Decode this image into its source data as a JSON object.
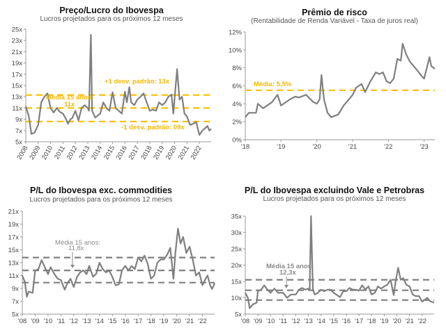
{
  "chart_data": [
    {
      "type": "line",
      "title": "Preço/Lucro do Ibovespa",
      "subtitle": "Lucros projetados para os próximos 12 meses",
      "ylim": [
        5,
        25
      ],
      "yticks": [
        5,
        7,
        9,
        11,
        13,
        15,
        17,
        19,
        21,
        23,
        25
      ],
      "ytick_suffix": "x",
      "xlim": [
        2008,
        2022.95
      ],
      "xticks": [
        2008,
        2009,
        2010,
        2011,
        2012,
        2013,
        2014,
        2015,
        2016,
        2017,
        2018,
        2019,
        2020,
        2021,
        2022
      ],
      "xtick_labels": [
        "2008",
        "2009",
        "2010",
        "2011",
        "2012",
        "2013",
        "2014",
        "2015",
        "2016",
        "2017",
        "2018",
        "2019",
        "2020",
        "2021",
        "2022"
      ],
      "line_color": "#7f7f7f",
      "reference_color": "#ffc000",
      "reference_lines": [
        13.3,
        11.0,
        8.6
      ],
      "annotations": {
        "plus_sd": "+1 desv. padrão: 13x",
        "mean_label": "Média 15 anos:",
        "mean_value": "11x",
        "minus_sd": "-1 desv. padrão: 09x"
      },
      "points": [
        [
          2008,
          11.3
        ],
        [
          2008.25,
          9.5
        ],
        [
          2008.45,
          6.4
        ],
        [
          2008.7,
          6.6
        ],
        [
          2009,
          8
        ],
        [
          2009.25,
          12
        ],
        [
          2009.5,
          13
        ],
        [
          2009.75,
          13.6
        ],
        [
          2010,
          11
        ],
        [
          2010.25,
          10.2
        ],
        [
          2010.5,
          11
        ],
        [
          2010.75,
          10.3
        ],
        [
          2011,
          10
        ],
        [
          2011.25,
          9
        ],
        [
          2011.4,
          8.2
        ],
        [
          2011.6,
          9
        ],
        [
          2011.75,
          9.2
        ],
        [
          2012,
          10.5
        ],
        [
          2012.25,
          8.8
        ],
        [
          2012.5,
          11
        ],
        [
          2012.75,
          11.5
        ],
        [
          2013,
          11
        ],
        [
          2013.1,
          10.5
        ],
        [
          2013.25,
          24
        ],
        [
          2013.35,
          10.5
        ],
        [
          2013.6,
          9.3
        ],
        [
          2014,
          10
        ],
        [
          2014.25,
          12
        ],
        [
          2014.5,
          11
        ],
        [
          2014.75,
          10.5
        ],
        [
          2015,
          13.8
        ],
        [
          2015.25,
          11
        ],
        [
          2015.5,
          10.5
        ],
        [
          2015.75,
          10
        ],
        [
          2016,
          13.9
        ],
        [
          2016.15,
          12
        ],
        [
          2016.35,
          14.7
        ],
        [
          2016.5,
          12
        ],
        [
          2016.75,
          11.5
        ],
        [
          2017,
          12.5
        ],
        [
          2017.25,
          13
        ],
        [
          2017.5,
          13.6
        ],
        [
          2017.75,
          12
        ],
        [
          2018,
          10.5
        ],
        [
          2018.25,
          10.7
        ],
        [
          2018.5,
          10.5
        ],
        [
          2018.75,
          12
        ],
        [
          2019,
          11.5
        ],
        [
          2019.25,
          12
        ],
        [
          2019.5,
          13
        ],
        [
          2019.75,
          13.4
        ],
        [
          2019.9,
          10
        ],
        [
          2020.2,
          17.9
        ],
        [
          2020.4,
          12.5
        ],
        [
          2020.6,
          13
        ],
        [
          2020.8,
          10
        ],
        [
          2021,
          9.5
        ],
        [
          2021.25,
          8
        ],
        [
          2021.5,
          8.2
        ],
        [
          2021.75,
          8.5
        ],
        [
          2022,
          6.2
        ],
        [
          2022.25,
          7
        ],
        [
          2022.5,
          7.5
        ],
        [
          2022.65,
          7.8
        ],
        [
          2022.8,
          7
        ],
        [
          2022.95,
          7.3
        ]
      ]
    },
    {
      "type": "line",
      "title": "Prêmio de risco",
      "subtitle": "(Rentabilidade de Renda Variável - Taxa de juros real)",
      "ylim": [
        0,
        12
      ],
      "yticks": [
        0,
        2,
        4,
        6,
        8,
        10,
        12
      ],
      "ytick_suffix": "%",
      "xlim": [
        2018,
        2023.3
      ],
      "xticks": [
        2018,
        2019,
        2020,
        2021,
        2022,
        2023
      ],
      "xtick_labels": [
        "'18",
        "'19",
        "'20",
        "'21",
        "'22",
        "'23"
      ],
      "line_color": "#7f7f7f",
      "reference_color": "#ffc000",
      "reference_lines": [
        5.5
      ],
      "annotations": {
        "mean_label": "Média: 5,5%"
      },
      "points": [
        [
          2018,
          2.5
        ],
        [
          2018.1,
          3
        ],
        [
          2018.3,
          3
        ],
        [
          2018.35,
          4
        ],
        [
          2018.5,
          3.5
        ],
        [
          2018.75,
          4.2
        ],
        [
          2018.9,
          5
        ],
        [
          2019,
          3.8
        ],
        [
          2019.25,
          4.5
        ],
        [
          2019.4,
          4.8
        ],
        [
          2019.5,
          4.7
        ],
        [
          2019.7,
          5
        ],
        [
          2019.9,
          4.2
        ],
        [
          2020,
          4
        ],
        [
          2020.08,
          4.5
        ],
        [
          2020.13,
          7.2
        ],
        [
          2020.2,
          4.5
        ],
        [
          2020.3,
          3
        ],
        [
          2020.4,
          2.5
        ],
        [
          2020.6,
          2.8
        ],
        [
          2020.75,
          3.8
        ],
        [
          2020.9,
          4.5
        ],
        [
          2021,
          5
        ],
        [
          2021.1,
          5.8
        ],
        [
          2021.25,
          6.2
        ],
        [
          2021.35,
          5.3
        ],
        [
          2021.5,
          6.5
        ],
        [
          2021.65,
          7.5
        ],
        [
          2021.75,
          7.3
        ],
        [
          2021.85,
          7.5
        ],
        [
          2021.95,
          6.5
        ],
        [
          2022.05,
          6.3
        ],
        [
          2022.15,
          6.8
        ],
        [
          2022.25,
          9
        ],
        [
          2022.35,
          8.8
        ],
        [
          2022.4,
          10.7
        ],
        [
          2022.5,
          9.5
        ],
        [
          2022.6,
          8.7
        ],
        [
          2022.75,
          8
        ],
        [
          2022.85,
          7.5
        ],
        [
          2022.95,
          7
        ],
        [
          2023,
          6.8
        ],
        [
          2023.15,
          9.2
        ],
        [
          2023.2,
          8.2
        ],
        [
          2023.3,
          7.9
        ]
      ]
    },
    {
      "type": "line",
      "title": "P/L do Ibovespa exc. commodities",
      "subtitle": "Lucros projetados para os próximos 12 meses",
      "ylim": [
        5,
        21
      ],
      "yticks": [
        5,
        7,
        9,
        11,
        13,
        15,
        17,
        19,
        21
      ],
      "ytick_suffix": "x",
      "xlim": [
        2008,
        2022.95
      ],
      "xticks": [
        2008,
        2009,
        2010,
        2011,
        2012,
        2013,
        2014,
        2015,
        2016,
        2017,
        2018,
        2019,
        2020,
        2021,
        2022
      ],
      "xtick_labels": [
        "'08",
        "'09",
        "'10",
        "'11",
        "'12",
        "'13",
        "'14",
        "'15",
        "'16",
        "'17",
        "'18",
        "'19",
        "'20",
        "'21",
        "'22"
      ],
      "line_color": "#7f7f7f",
      "reference_color": "#7f7f7f",
      "reference_lines": [
        13.8,
        11.8,
        9.9
      ],
      "annotations": {
        "mean_label": "Média 15 anos:",
        "mean_value": "11,8x"
      },
      "points": [
        [
          2008,
          11
        ],
        [
          2008.2,
          10
        ],
        [
          2008.35,
          7.7
        ],
        [
          2008.5,
          8.5
        ],
        [
          2008.8,
          8.3
        ],
        [
          2009,
          11.8
        ],
        [
          2009.25,
          12
        ],
        [
          2009.5,
          13.4
        ],
        [
          2009.75,
          12.3
        ],
        [
          2010,
          11.2
        ],
        [
          2010.2,
          12.3
        ],
        [
          2010.5,
          11.2
        ],
        [
          2010.75,
          10.5
        ],
        [
          2011,
          10.3
        ],
        [
          2011.3,
          8.8
        ],
        [
          2011.5,
          9.8
        ],
        [
          2011.75,
          10.5
        ],
        [
          2012,
          9.2
        ],
        [
          2012.25,
          10.8
        ],
        [
          2012.5,
          11.5
        ],
        [
          2012.75,
          11.8
        ],
        [
          2013,
          11.2
        ],
        [
          2013.2,
          12.5
        ],
        [
          2013.5,
          10.8
        ],
        [
          2013.75,
          11.3
        ],
        [
          2014,
          13
        ],
        [
          2014.25,
          12
        ],
        [
          2014.5,
          11.5
        ],
        [
          2014.75,
          11.8
        ],
        [
          2015,
          10.8
        ],
        [
          2015.25,
          9.5
        ],
        [
          2015.5,
          9.6
        ],
        [
          2015.75,
          11.8
        ],
        [
          2016,
          12.5
        ],
        [
          2016.25,
          11.8
        ],
        [
          2016.5,
          12.5
        ],
        [
          2016.75,
          12
        ],
        [
          2017,
          13.8
        ],
        [
          2017.25,
          13.2
        ],
        [
          2017.5,
          14.1
        ],
        [
          2017.75,
          12.8
        ],
        [
          2018,
          10.5
        ],
        [
          2018.25,
          11
        ],
        [
          2018.5,
          13
        ],
        [
          2018.75,
          13.5
        ],
        [
          2019,
          13.5
        ],
        [
          2019.25,
          14.2
        ],
        [
          2019.5,
          15.3
        ],
        [
          2019.75,
          10.5
        ],
        [
          2019.9,
          14.5
        ],
        [
          2020.1,
          18.3
        ],
        [
          2020.3,
          16
        ],
        [
          2020.5,
          17
        ],
        [
          2020.75,
          14.5
        ],
        [
          2021,
          15.5
        ],
        [
          2021.25,
          13.5
        ],
        [
          2021.5,
          11
        ],
        [
          2021.75,
          11.5
        ],
        [
          2022,
          9.5
        ],
        [
          2022.25,
          10.5
        ],
        [
          2022.4,
          11
        ],
        [
          2022.6,
          9.5
        ],
        [
          2022.75,
          8.9
        ],
        [
          2022.95,
          9.8
        ]
      ]
    },
    {
      "type": "line",
      "title": "P/L do Ibovespa excluindo Vale e Petrobras",
      "subtitle": "Lucros projetados para os próximos 12 meses",
      "ylim": [
        5,
        35
      ],
      "yticks": [
        5,
        10,
        15,
        20,
        25,
        30,
        35
      ],
      "ytick_suffix": "x",
      "xlim": [
        2008,
        2022.95
      ],
      "xticks": [
        2008,
        2009,
        2010,
        2011,
        2012,
        2013,
        2014,
        2015,
        2016,
        2017,
        2018,
        2019,
        2020,
        2021,
        2022
      ],
      "xtick_labels": [
        "'08",
        "'09",
        "'10",
        "'11",
        "'12",
        "'13",
        "'14",
        "'15",
        "'16",
        "'17",
        "'18",
        "'19",
        "'20",
        "'21",
        "'22"
      ],
      "line_color": "#7f7f7f",
      "reference_color": "#7f7f7f",
      "reference_lines": [
        15.5,
        12.3,
        9.3
      ],
      "annotations": {
        "mean_label": "Média 15 anos:",
        "mean_value": "12,3x"
      },
      "points": [
        [
          2008,
          11.5
        ],
        [
          2008.2,
          10
        ],
        [
          2008.35,
          6.8
        ],
        [
          2008.6,
          8
        ],
        [
          2008.9,
          8.5
        ],
        [
          2009,
          12
        ],
        [
          2009.25,
          12.5
        ],
        [
          2009.5,
          13.8
        ],
        [
          2009.75,
          12.5
        ],
        [
          2010,
          11.5
        ],
        [
          2010.3,
          12.8
        ],
        [
          2010.6,
          11.5
        ],
        [
          2011,
          11.5
        ],
        [
          2011.3,
          10
        ],
        [
          2011.6,
          11
        ],
        [
          2012,
          11
        ],
        [
          2012.25,
          12.5
        ],
        [
          2012.5,
          13
        ],
        [
          2012.75,
          12.5
        ],
        [
          2013,
          12.8
        ],
        [
          2013.1,
          12.5
        ],
        [
          2013.2,
          35
        ],
        [
          2013.35,
          12.5
        ],
        [
          2013.5,
          11
        ],
        [
          2013.75,
          11.5
        ],
        [
          2014,
          12.5
        ],
        [
          2014.25,
          12
        ],
        [
          2014.5,
          12.5
        ],
        [
          2014.75,
          12.5
        ],
        [
          2015,
          11.5
        ],
        [
          2015.5,
          10.2
        ],
        [
          2015.75,
          12
        ],
        [
          2016,
          12
        ],
        [
          2016.25,
          13
        ],
        [
          2016.5,
          12.5
        ],
        [
          2016.75,
          12.5
        ],
        [
          2017,
          12.2
        ],
        [
          2017.25,
          13.8
        ],
        [
          2017.5,
          12.5
        ],
        [
          2017.75,
          13.5
        ],
        [
          2018,
          11
        ],
        [
          2018.25,
          11.5
        ],
        [
          2018.5,
          13.5
        ],
        [
          2018.75,
          12.8
        ],
        [
          2019,
          13.5
        ],
        [
          2019.25,
          14
        ],
        [
          2019.5,
          15.5
        ],
        [
          2019.75,
          10.8
        ],
        [
          2019.9,
          15
        ],
        [
          2020.1,
          19.2
        ],
        [
          2020.3,
          15.5
        ],
        [
          2020.5,
          16
        ],
        [
          2020.75,
          14
        ],
        [
          2021,
          13.5
        ],
        [
          2021.25,
          11
        ],
        [
          2021.5,
          10.5
        ],
        [
          2021.75,
          10.5
        ],
        [
          2022,
          8.8
        ],
        [
          2022.25,
          9.5
        ],
        [
          2022.4,
          10
        ],
        [
          2022.6,
          9
        ],
        [
          2022.95,
          8.5
        ]
      ]
    }
  ]
}
